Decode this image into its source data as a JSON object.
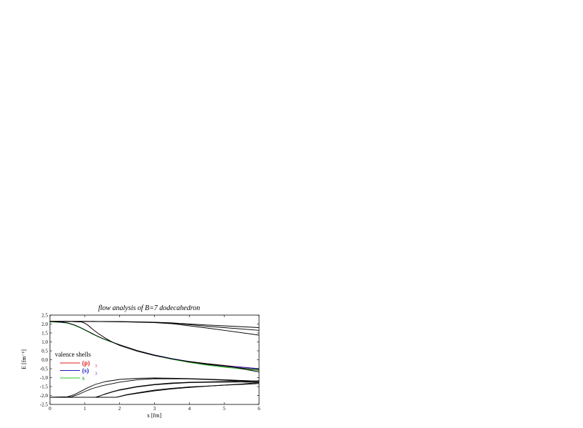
{
  "chart_data": {
    "type": "line",
    "title": "flow analysis of B=7 dodecahedron",
    "xlabel": "x [fm]",
    "ylabel": "E [fm⁻¹]",
    "xlim": [
      0,
      6
    ],
    "ylim": [
      -2.5,
      2.5
    ],
    "xticks": [
      "0",
      "1",
      "2",
      "3",
      "4",
      "5",
      "6"
    ],
    "yticks": [
      "-2.5",
      "-2.0",
      "-1.5",
      "-1.0",
      "-0.5",
      "0.0",
      "0.5",
      "1.0",
      "1.5",
      "2.0",
      "2.5"
    ],
    "grid": false,
    "legend": {
      "placement": "left",
      "title": "valence shells",
      "entries": [
        {
          "label": "(p)",
          "subscript": "3",
          "color": "#e0201e"
        },
        {
          "label": "(s)",
          "subscript": "3",
          "color": "#1b1bbf"
        },
        {
          "label": "s",
          "subscript": "",
          "color": "#2ec42e"
        }
      ]
    },
    "series": [
      {
        "name": "(p)",
        "color": "#e0201e",
        "x": [
          0,
          0.5,
          0.9,
          1.0,
          1.1,
          1.2,
          1.4,
          1.6,
          1.8,
          2.0,
          2.5,
          3.0,
          3.5,
          4.0,
          4.5,
          5.0,
          6.0
        ],
        "y": [
          2.15,
          2.15,
          2.12,
          2.05,
          1.92,
          1.75,
          1.45,
          1.2,
          0.98,
          0.8,
          0.48,
          0.24,
          0.05,
          -0.1,
          -0.22,
          -0.32,
          -0.5
        ]
      },
      {
        "name": "(s)",
        "color": "#1b1bbf",
        "x": [
          0,
          0.3,
          0.5,
          0.7,
          0.9,
          1.1,
          1.3,
          1.5,
          1.8,
          2.0,
          2.5,
          3.0,
          3.5,
          4.0,
          4.5,
          5.0,
          6.0
        ],
        "y": [
          2.15,
          2.13,
          2.07,
          1.95,
          1.78,
          1.58,
          1.38,
          1.2,
          0.98,
          0.84,
          0.52,
          0.27,
          0.07,
          -0.1,
          -0.23,
          -0.33,
          -0.5
        ]
      },
      {
        "name": "s",
        "color": "#2ec42e",
        "x": [
          0,
          0.3,
          0.5,
          0.7,
          0.9,
          1.1,
          1.3,
          1.5,
          1.8,
          2.0,
          2.5,
          3.0,
          3.5,
          4.0,
          4.5,
          5.0,
          6.0
        ],
        "y": [
          2.12,
          2.1,
          2.05,
          1.93,
          1.76,
          1.56,
          1.36,
          1.18,
          0.96,
          0.82,
          0.5,
          0.24,
          0.03,
          -0.15,
          -0.3,
          -0.42,
          -0.6
        ]
      },
      {
        "name": "",
        "color": "#000000",
        "x": [
          0,
          0.5,
          0.9,
          1.0,
          1.1,
          1.2,
          1.4,
          1.6,
          1.8,
          2.0,
          2.5,
          3.0,
          3.5,
          4.0,
          4.5,
          5.0,
          6.0
        ],
        "y": [
          2.15,
          2.15,
          2.12,
          2.05,
          1.92,
          1.75,
          1.45,
          1.2,
          0.98,
          0.8,
          0.48,
          0.24,
          0.05,
          -0.1,
          -0.22,
          -0.32,
          -0.68
        ]
      },
      {
        "name": "",
        "color": "#000000",
        "x": [
          0,
          0.5,
          0.7,
          0.9,
          1.1,
          1.3,
          1.5,
          1.8,
          2.0,
          2.5,
          3.0,
          3.5,
          4.0,
          4.5,
          5.0,
          6.0
        ],
        "y": [
          2.15,
          2.07,
          1.95,
          1.78,
          1.58,
          1.38,
          1.2,
          0.98,
          0.84,
          0.52,
          0.26,
          0.05,
          -0.12,
          -0.26,
          -0.37,
          -0.55
        ]
      },
      {
        "name": "",
        "color": "#000000",
        "x": [
          0,
          1,
          2,
          3,
          3.5,
          4,
          4.5,
          5,
          6
        ],
        "y": [
          2.15,
          2.15,
          2.13,
          2.1,
          2.07,
          2.0,
          1.95,
          1.9,
          1.8
        ]
      },
      {
        "name": "",
        "color": "#000000",
        "x": [
          0,
          1,
          2,
          3,
          3.5,
          4,
          4.5,
          5,
          6
        ],
        "y": [
          2.15,
          2.15,
          2.14,
          2.1,
          2.05,
          1.97,
          1.88,
          1.8,
          1.65
        ]
      },
      {
        "name": "",
        "color": "#000000",
        "x": [
          0,
          1,
          2,
          3,
          3.5,
          4,
          4.5,
          5,
          6
        ],
        "y": [
          2.15,
          2.15,
          2.13,
          2.08,
          2.02,
          1.9,
          1.78,
          1.65,
          1.38
        ]
      },
      {
        "name": "",
        "color": "#000000",
        "x": [
          0,
          0.5,
          0.7,
          0.9,
          1.1,
          1.3,
          1.6,
          2.0,
          2.5,
          3.0,
          4.0,
          5.0,
          6.0
        ],
        "y": [
          -2.1,
          -2.07,
          -1.95,
          -1.75,
          -1.55,
          -1.38,
          -1.22,
          -1.1,
          -1.04,
          -1.02,
          -1.05,
          -1.12,
          -1.2
        ]
      },
      {
        "name": "",
        "color": "#000000",
        "x": [
          0,
          0.6,
          0.8,
          1.0,
          1.2,
          1.5,
          2.0,
          2.5,
          3.0,
          4.0,
          5.0,
          6.0
        ],
        "y": [
          -2.1,
          -2.08,
          -1.95,
          -1.78,
          -1.62,
          -1.45,
          -1.25,
          -1.12,
          -1.06,
          -1.07,
          -1.14,
          -1.26
        ]
      },
      {
        "name": "",
        "color": "#000000",
        "x": [
          0,
          1.3,
          1.4,
          1.6,
          1.8,
          2.0,
          2.5,
          3.0,
          3.5,
          4.0,
          4.5,
          5.0,
          6.0
        ],
        "y": [
          -2.1,
          -2.1,
          -2.05,
          -1.9,
          -1.78,
          -1.68,
          -1.5,
          -1.38,
          -1.3,
          -1.26,
          -1.24,
          -1.22,
          -1.18
        ]
      },
      {
        "name": "",
        "color": "#000000",
        "x": [
          0,
          1.3,
          1.4,
          1.6,
          1.8,
          2.0,
          2.5,
          3.0,
          3.5,
          4.0,
          4.5,
          5.0,
          6.0
        ],
        "y": [
          -2.1,
          -2.1,
          -2.04,
          -1.92,
          -1.8,
          -1.7,
          -1.52,
          -1.4,
          -1.33,
          -1.28,
          -1.26,
          -1.25,
          -1.25
        ]
      },
      {
        "name": "",
        "color": "#000000",
        "x": [
          0,
          1.9,
          2.0,
          2.2,
          2.5,
          3.0,
          3.5,
          4.0,
          4.5,
          5.0,
          5.5,
          6.0
        ],
        "y": [
          -2.1,
          -2.1,
          -2.05,
          -1.95,
          -1.85,
          -1.7,
          -1.6,
          -1.52,
          -1.47,
          -1.42,
          -1.38,
          -1.33
        ]
      },
      {
        "name": "",
        "color": "#000000",
        "x": [
          0,
          1.9,
          2.0,
          2.2,
          2.5,
          3.0,
          3.5,
          4.0,
          4.5,
          5.0,
          5.5,
          6.0
        ],
        "y": [
          -2.1,
          -2.1,
          -2.06,
          -1.97,
          -1.88,
          -1.74,
          -1.63,
          -1.55,
          -1.48,
          -1.42,
          -1.36,
          -1.28
        ]
      }
    ]
  }
}
